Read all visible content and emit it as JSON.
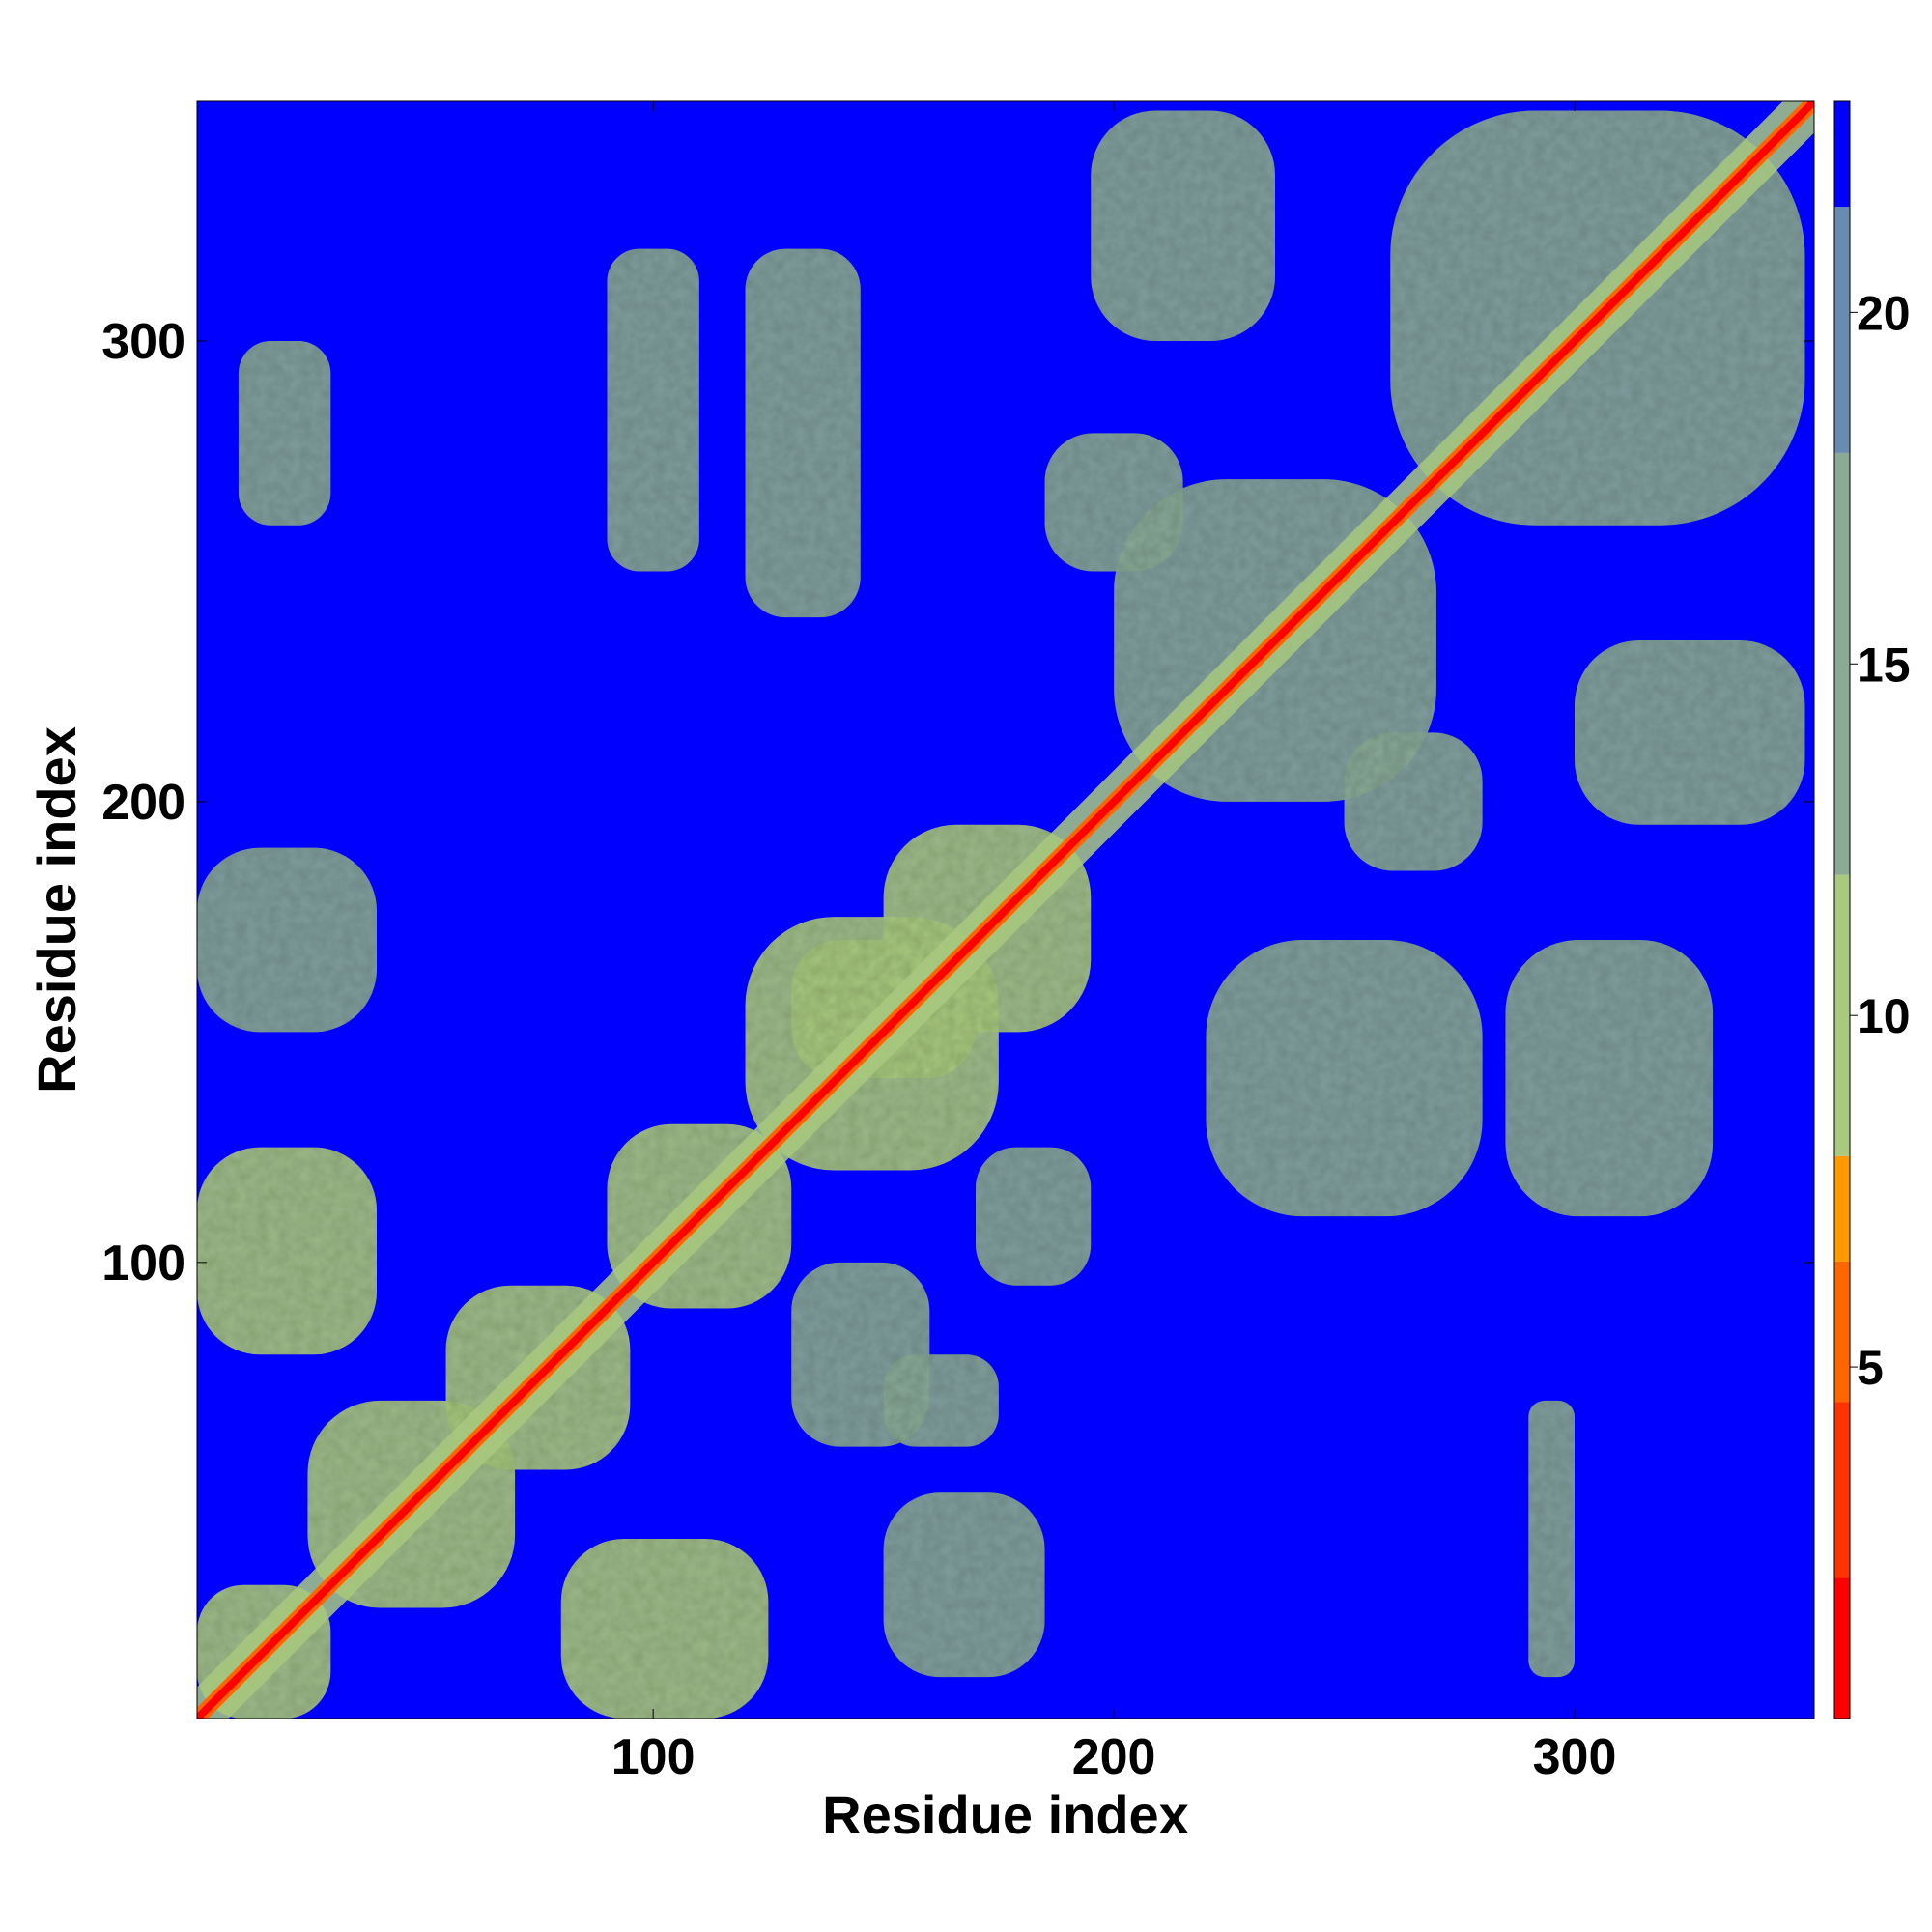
{
  "chart_data": {
    "type": "heatmap",
    "title": "",
    "xlabel": "Residue index",
    "ylabel": "Residue index",
    "xlim": [
      1,
      352
    ],
    "ylim": [
      1,
      352
    ],
    "x_ticks": [
      100,
      200,
      300
    ],
    "y_ticks": [
      100,
      200,
      300
    ],
    "x_tick_labels": [
      "100",
      "200",
      "300"
    ],
    "y_tick_labels": [
      "100",
      "200",
      "300"
    ],
    "colorbar": {
      "range": [
        0,
        23
      ],
      "ticks": [
        5,
        10,
        15,
        20
      ],
      "tick_labels": [
        "5",
        "10",
        "15",
        "20"
      ],
      "bands": [
        {
          "from": 0,
          "to": 2,
          "color": "#ff0000"
        },
        {
          "from": 2,
          "to": 4.5,
          "color": "#ff3300"
        },
        {
          "from": 4.5,
          "to": 6.5,
          "color": "#ff6600"
        },
        {
          "from": 6.5,
          "to": 8,
          "color": "#ff9900"
        },
        {
          "from": 8,
          "to": 12,
          "color": "#a9c97f"
        },
        {
          "from": 12,
          "to": 18,
          "color": "#8aaa96"
        },
        {
          "from": 18,
          "to": 21.5,
          "color": "#6a8bb0"
        },
        {
          "from": 21.5,
          "to": 23,
          "color": "#0000ff"
        }
      ]
    },
    "background_value": 23,
    "background_color": "#0000ff",
    "grid": false,
    "diagonal": {
      "from": 1,
      "to": 352,
      "core_value": 1,
      "halo_value": 9
    },
    "contact_blocks": [
      {
        "x": [
          1,
          30
        ],
        "y": [
          1,
          30
        ],
        "value": 10
      },
      {
        "x": [
          25,
          70
        ],
        "y": [
          25,
          70
        ],
        "value": 11
      },
      {
        "x": [
          1,
          40
        ],
        "y": [
          80,
          125
        ],
        "value": 11
      },
      {
        "x": [
          80,
          125
        ],
        "y": [
          1,
          40
        ],
        "value": 11
      },
      {
        "x": [
          55,
          95
        ],
        "y": [
          55,
          95
        ],
        "value": 11
      },
      {
        "x": [
          90,
          130
        ],
        "y": [
          90,
          130
        ],
        "value": 11
      },
      {
        "x": [
          120,
          175
        ],
        "y": [
          120,
          175
        ],
        "value": 11
      },
      {
        "x": [
          150,
          195
        ],
        "y": [
          150,
          195
        ],
        "value": 11
      },
      {
        "x": [
          185,
          215
        ],
        "y": [
          250,
          280
        ],
        "value": 12
      },
      {
        "x": [
          250,
          280
        ],
        "y": [
          185,
          215
        ],
        "value": 12
      },
      {
        "x": [
          200,
          270
        ],
        "y": [
          200,
          270
        ],
        "value": 12
      },
      {
        "x": [
          260,
          350
        ],
        "y": [
          260,
          350
        ],
        "value": 12
      },
      {
        "x": [
          195,
          235
        ],
        "y": [
          300,
          350
        ],
        "value": 12
      },
      {
        "x": [
          300,
          350
        ],
        "y": [
          195,
          235
        ],
        "value": 12
      },
      {
        "x": [
          130,
          170
        ],
        "y": [
          140,
          170
        ],
        "value": 11
      },
      {
        "x": [
          170,
          195
        ],
        "y": [
          95,
          125
        ],
        "value": 12
      },
      {
        "x": [
          130,
          160
        ],
        "y": [
          60,
          100
        ],
        "value": 12
      },
      {
        "x": [
          1,
          40
        ],
        "y": [
          150,
          190
        ],
        "value": 12
      },
      {
        "x": [
          220,
          280
        ],
        "y": [
          110,
          170
        ],
        "value": 13
      },
      {
        "x": [
          285,
          330
        ],
        "y": [
          110,
          170
        ],
        "value": 13
      },
      {
        "x": [
          120,
          145
        ],
        "y": [
          240,
          320
        ],
        "value": 13
      },
      {
        "x": [
          90,
          110
        ],
        "y": [
          250,
          320
        ],
        "value": 14
      },
      {
        "x": [
          10,
          30
        ],
        "y": [
          260,
          300
        ],
        "value": 14
      },
      {
        "x": [
          290,
          300
        ],
        "y": [
          10,
          70
        ],
        "value": 14
      },
      {
        "x": [
          150,
          185
        ],
        "y": [
          10,
          50
        ],
        "value": 14
      },
      {
        "x": [
          150,
          175
        ],
        "y": [
          60,
          80
        ],
        "value": 14
      }
    ]
  }
}
